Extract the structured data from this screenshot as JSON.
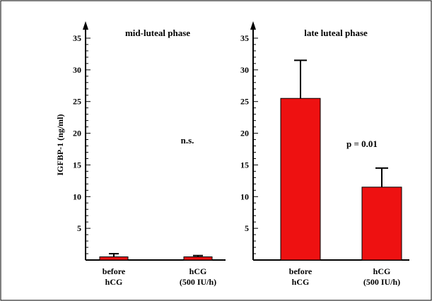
{
  "colors": {
    "bar": "#ee1111",
    "axis": "#000000",
    "border": "#000000"
  },
  "shared": {
    "ylabel": "IGFBP-1 (ng/ml)",
    "ylim": [
      0,
      35
    ],
    "yticks": [
      "5",
      "10",
      "15",
      "20",
      "25",
      "30",
      "35"
    ]
  },
  "chart_data": [
    {
      "type": "bar",
      "title": "mid-luteal phase",
      "categories": [
        [
          "before",
          "hCG"
        ],
        [
          "hCG",
          "(500 IU/h)"
        ]
      ],
      "values": [
        0.5,
        0.5
      ],
      "errors": [
        0.5,
        0.2
      ],
      "annotation": "n.s.",
      "ylabel": "IGFBP-1 (ng/ml)",
      "ylim": [
        0,
        35
      ]
    },
    {
      "type": "bar",
      "title": "late luteal phase",
      "categories": [
        [
          "before",
          "hCG"
        ],
        [
          "hCG",
          "(500 IU/h)"
        ]
      ],
      "values": [
        25.5,
        11.5
      ],
      "errors": [
        6,
        3
      ],
      "annotation": "p = 0.01",
      "ylabel": "",
      "ylim": [
        0,
        35
      ]
    }
  ]
}
